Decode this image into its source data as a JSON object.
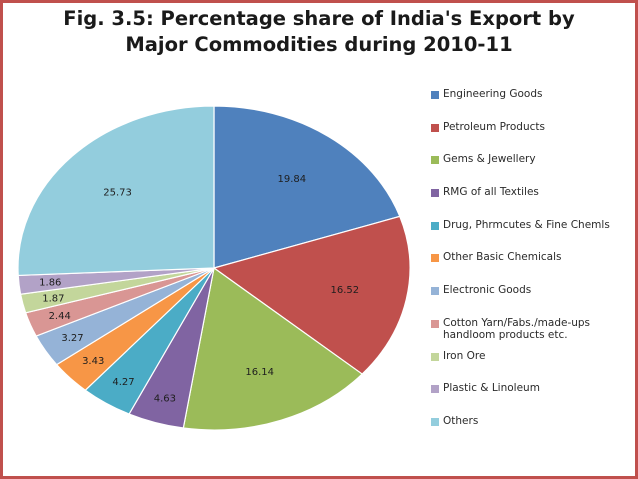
{
  "chart_data": {
    "type": "pie",
    "title_lines": [
      "Fig. 3.5: Percentage share of India's Export by",
      "Major Commodities during 2010-11"
    ],
    "legend_position": "right",
    "slices": [
      {
        "name": "Engineering Goods",
        "value": 19.84,
        "label": "19.84",
        "color": "#4f81bd"
      },
      {
        "name": "Petroleum Products",
        "value": 16.52,
        "label": "16.52",
        "color": "#c0504d"
      },
      {
        "name": "Gems & Jewellery",
        "value": 16.14,
        "label": "16.14",
        "color": "#9bbb59"
      },
      {
        "name": "RMG of all Textiles",
        "value": 4.63,
        "label": "4.63",
        "color": "#8064a2"
      },
      {
        "name": "Drug, Phrmcutes & Fine Chemls",
        "value": 4.27,
        "label": "4.27",
        "color": "#4bacc6"
      },
      {
        "name": "Other Basic Chemicals",
        "value": 3.43,
        "label": "3.43",
        "color": "#f79646"
      },
      {
        "name": "Electronic Goods",
        "value": 3.27,
        "label": "3.27",
        "color": "#95b3d7"
      },
      {
        "name": "Cotton Yarn/Fabs./made-ups handloom products etc.",
        "value": 2.44,
        "label": "2.44",
        "color": "#d99694"
      },
      {
        "name": "Iron Ore",
        "value": 1.87,
        "label": "1.87",
        "color": "#c3d69b"
      },
      {
        "name": "Plastic & Linoleum",
        "value": 1.86,
        "label": "1.86",
        "color": "#b2a2c7"
      },
      {
        "name": "Others",
        "value": 25.73,
        "label": "25.73",
        "color": "#93cddd"
      }
    ]
  }
}
